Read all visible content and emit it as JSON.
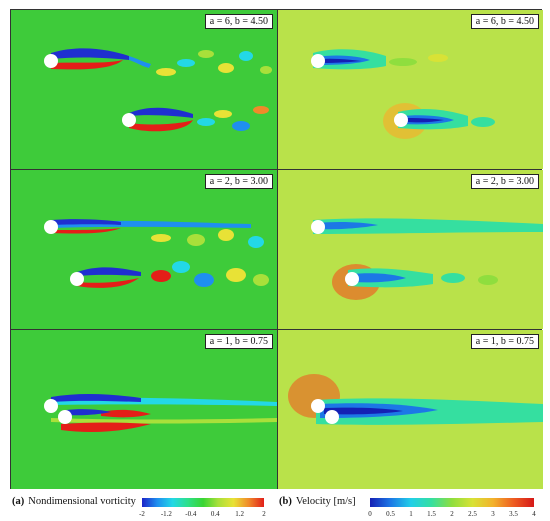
{
  "panels": [
    {
      "label": "a = 6, b = 4.50"
    },
    {
      "label": "a = 6, b = 4.50"
    },
    {
      "label": "a = 2, b = 3.00"
    },
    {
      "label": "a = 2, b = 3.00"
    },
    {
      "label": "a = 1, b = 0.75"
    },
    {
      "label": "a = 1, b = 0.75"
    }
  ],
  "legend_a": {
    "tag": "(a)",
    "name": "Nondimensional vorticity",
    "ticks": [
      "-2",
      "-1.2",
      "-0.4",
      "0.4",
      "1.2",
      "2"
    ],
    "colors": [
      "#1c24c8",
      "#1f8fef",
      "#23d8e6",
      "#2de08a",
      "#39d533",
      "#a9e03a",
      "#e8e236",
      "#f08a2a",
      "#e11f1a"
    ]
  },
  "legend_b": {
    "tag": "(b)",
    "name": "Velocity [m/s]",
    "ticks": [
      "0",
      "0.5",
      "1",
      "1.5",
      "2",
      "2.5",
      "3",
      "3.5",
      "4"
    ],
    "colors": [
      "#1420b4",
      "#1c78e6",
      "#22cfe8",
      "#35dfa0",
      "#8fde3e",
      "#d8e236",
      "#f2b22c",
      "#ee5d21",
      "#d51818"
    ]
  },
  "colors": {
    "vorticity_bg": "#3ecb3a",
    "velocity_bg": "#b9e24a",
    "positive": "#e41e18",
    "negative": "#1f2fd0",
    "cylinder": "#ffffff"
  }
}
